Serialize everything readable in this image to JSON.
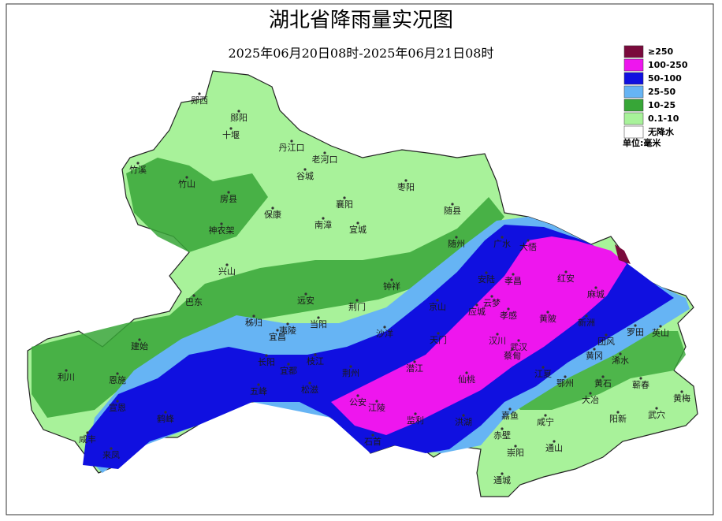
{
  "header": {
    "title": "湖北省降雨量实况图",
    "subtitle": "2025年06月20日08时-2025年06月21日08时"
  },
  "legend": {
    "items": [
      {
        "label": "≥250",
        "color": "#7a0a3c"
      },
      {
        "label": "100-250",
        "color": "#ee16ee"
      },
      {
        "label": "50-100",
        "color": "#1010e0"
      },
      {
        "label": "25-50",
        "color": "#66b4f4"
      },
      {
        "label": "10-25",
        "color": "#37a637"
      },
      {
        "label": "0.1-10",
        "color": "#a8f29a"
      },
      {
        "label": "无降水",
        "color": "#ffffff"
      }
    ],
    "unit": "单位:毫米"
  },
  "places": [
    "郧西",
    "郧阳",
    "十堰",
    "丹江口",
    "老河口",
    "竹溪",
    "谷城",
    "枣阳",
    "竹山",
    "房县",
    "襄阳",
    "保康",
    "南漳",
    "宜城",
    "随县",
    "神农架",
    "随州",
    "广水",
    "大悟",
    "兴山",
    "钟祥",
    "安陆",
    "孝昌",
    "红安",
    "麻城",
    "巴东",
    "远安",
    "荆门",
    "京山",
    "云梦",
    "应城",
    "孝感",
    "黄陂",
    "新洲",
    "秭归",
    "夷陵",
    "当阳",
    "宜昌",
    "沙洋",
    "天门",
    "汉川",
    "武汉",
    "蔡甸",
    "团风",
    "罗田",
    "英山",
    "建始",
    "黄冈",
    "浠水",
    "长阳",
    "枝江",
    "宜都",
    "荆州",
    "潜江",
    "仙桃",
    "江夏",
    "鄂州",
    "黄石",
    "蕲春",
    "利川",
    "恩施",
    "五峰",
    "松滋",
    "公安",
    "江陵",
    "大冶",
    "黄梅",
    "宣恩",
    "鹤峰",
    "监利",
    "洪湖",
    "嘉鱼",
    "咸宁",
    "阳新",
    "武穴",
    "咸丰",
    "石首",
    "赤壁",
    "崇阳",
    "通山",
    "来凤",
    "通城"
  ]
}
